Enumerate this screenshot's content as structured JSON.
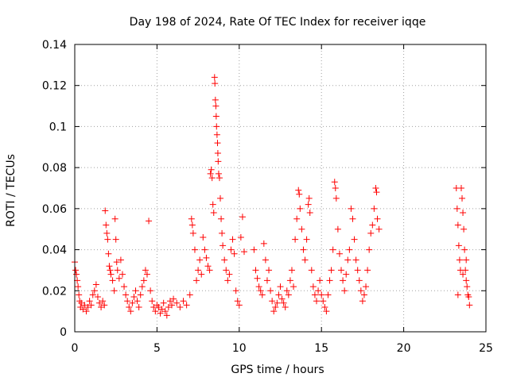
{
  "chart_data": {
    "type": "scatter",
    "title": "Day 198 of 2024, Rate Of TEC Index for receiver iqqe",
    "xlabel": "GPS time / hours",
    "ylabel": "ROTI / TECUs",
    "xlim": [
      0,
      25
    ],
    "ylim": [
      0,
      0.14
    ],
    "xticks": [
      0,
      5,
      10,
      15,
      20,
      25
    ],
    "xtick_labels": [
      "0",
      "5",
      "10",
      "15",
      "20",
      "25"
    ],
    "yticks": [
      0,
      0.02,
      0.04,
      0.06,
      0.08,
      0.1,
      0.12,
      0.14
    ],
    "ytick_labels": [
      "0",
      "0.02",
      "0.04",
      "0.06",
      "0.08",
      "0.1",
      "0.12",
      "0.14"
    ],
    "grid": true,
    "marker": "+",
    "marker_color": "#ff0000",
    "series": [
      {
        "name": "ROTI",
        "points": [
          [
            0.0,
            0.034
          ],
          [
            0.05,
            0.03
          ],
          [
            0.1,
            0.028
          ],
          [
            0.15,
            0.025
          ],
          [
            0.2,
            0.022
          ],
          [
            0.25,
            0.018
          ],
          [
            0.3,
            0.015
          ],
          [
            0.35,
            0.012
          ],
          [
            0.4,
            0.014
          ],
          [
            0.5,
            0.011
          ],
          [
            0.6,
            0.013
          ],
          [
            0.7,
            0.01
          ],
          [
            0.8,
            0.012
          ],
          [
            0.9,
            0.015
          ],
          [
            1.0,
            0.013
          ],
          [
            1.1,
            0.018
          ],
          [
            1.2,
            0.02
          ],
          [
            1.3,
            0.023
          ],
          [
            1.4,
            0.017
          ],
          [
            1.5,
            0.014
          ],
          [
            1.6,
            0.012
          ],
          [
            1.7,
            0.015
          ],
          [
            1.8,
            0.013
          ],
          [
            1.85,
            0.059
          ],
          [
            1.9,
            0.052
          ],
          [
            1.95,
            0.048
          ],
          [
            2.0,
            0.045
          ],
          [
            2.05,
            0.038
          ],
          [
            2.1,
            0.032
          ],
          [
            2.15,
            0.03
          ],
          [
            2.2,
            0.028
          ],
          [
            2.3,
            0.025
          ],
          [
            2.4,
            0.02
          ],
          [
            2.45,
            0.055
          ],
          [
            2.5,
            0.045
          ],
          [
            2.55,
            0.034
          ],
          [
            2.6,
            0.03
          ],
          [
            2.7,
            0.026
          ],
          [
            2.8,
            0.035
          ],
          [
            2.9,
            0.028
          ],
          [
            3.0,
            0.022
          ],
          [
            3.1,
            0.018
          ],
          [
            3.2,
            0.015
          ],
          [
            3.3,
            0.012
          ],
          [
            3.4,
            0.01
          ],
          [
            3.5,
            0.014
          ],
          [
            3.6,
            0.017
          ],
          [
            3.7,
            0.02
          ],
          [
            3.8,
            0.015
          ],
          [
            3.9,
            0.012
          ],
          [
            4.0,
            0.018
          ],
          [
            4.1,
            0.022
          ],
          [
            4.2,
            0.025
          ],
          [
            4.3,
            0.03
          ],
          [
            4.4,
            0.028
          ],
          [
            4.5,
            0.054
          ],
          [
            4.6,
            0.02
          ],
          [
            4.7,
            0.015
          ],
          [
            4.8,
            0.012
          ],
          [
            4.9,
            0.01
          ],
          [
            5.0,
            0.013
          ],
          [
            5.1,
            0.012
          ],
          [
            5.2,
            0.009
          ],
          [
            5.3,
            0.011
          ],
          [
            5.4,
            0.014
          ],
          [
            5.5,
            0.01
          ],
          [
            5.6,
            0.008
          ],
          [
            5.7,
            0.012
          ],
          [
            5.8,
            0.015
          ],
          [
            5.9,
            0.013
          ],
          [
            6.0,
            0.016
          ],
          [
            6.2,
            0.014
          ],
          [
            6.4,
            0.012
          ],
          [
            6.6,
            0.015
          ],
          [
            6.8,
            0.013
          ],
          [
            7.0,
            0.018
          ],
          [
            7.1,
            0.055
          ],
          [
            7.15,
            0.052
          ],
          [
            7.2,
            0.048
          ],
          [
            7.3,
            0.04
          ],
          [
            7.4,
            0.025
          ],
          [
            7.5,
            0.03
          ],
          [
            7.6,
            0.035
          ],
          [
            7.7,
            0.028
          ],
          [
            7.8,
            0.046
          ],
          [
            7.9,
            0.04
          ],
          [
            8.0,
            0.036
          ],
          [
            8.1,
            0.032
          ],
          [
            8.2,
            0.03
          ],
          [
            8.25,
            0.077
          ],
          [
            8.3,
            0.079
          ],
          [
            8.35,
            0.075
          ],
          [
            8.4,
            0.062
          ],
          [
            8.45,
            0.058
          ],
          [
            8.5,
            0.124
          ],
          [
            8.52,
            0.121
          ],
          [
            8.55,
            0.113
          ],
          [
            8.58,
            0.11
          ],
          [
            8.6,
            0.105
          ],
          [
            8.62,
            0.1
          ],
          [
            8.65,
            0.096
          ],
          [
            8.68,
            0.092
          ],
          [
            8.7,
            0.087
          ],
          [
            8.72,
            0.083
          ],
          [
            8.75,
            0.077
          ],
          [
            8.8,
            0.075
          ],
          [
            8.85,
            0.065
          ],
          [
            8.9,
            0.055
          ],
          [
            8.95,
            0.048
          ],
          [
            9.0,
            0.042
          ],
          [
            9.1,
            0.035
          ],
          [
            9.2,
            0.03
          ],
          [
            9.3,
            0.025
          ],
          [
            9.4,
            0.028
          ],
          [
            9.5,
            0.04
          ],
          [
            9.6,
            0.045
          ],
          [
            9.7,
            0.038
          ],
          [
            9.8,
            0.02
          ],
          [
            9.9,
            0.015
          ],
          [
            10.0,
            0.013
          ],
          [
            10.1,
            0.046
          ],
          [
            10.2,
            0.056
          ],
          [
            10.3,
            0.039
          ],
          [
            10.9,
            0.04
          ],
          [
            11.0,
            0.03
          ],
          [
            11.1,
            0.026
          ],
          [
            11.2,
            0.022
          ],
          [
            11.3,
            0.02
          ],
          [
            11.4,
            0.018
          ],
          [
            11.5,
            0.043
          ],
          [
            11.6,
            0.035
          ],
          [
            11.7,
            0.025
          ],
          [
            11.8,
            0.03
          ],
          [
            11.9,
            0.02
          ],
          [
            12.0,
            0.015
          ],
          [
            12.1,
            0.01
          ],
          [
            12.2,
            0.012
          ],
          [
            12.3,
            0.014
          ],
          [
            12.4,
            0.018
          ],
          [
            12.5,
            0.022
          ],
          [
            12.6,
            0.016
          ],
          [
            12.7,
            0.014
          ],
          [
            12.8,
            0.012
          ],
          [
            12.9,
            0.02
          ],
          [
            13.0,
            0.018
          ],
          [
            13.1,
            0.025
          ],
          [
            13.2,
            0.03
          ],
          [
            13.3,
            0.022
          ],
          [
            13.4,
            0.045
          ],
          [
            13.5,
            0.055
          ],
          [
            13.6,
            0.069
          ],
          [
            13.65,
            0.067
          ],
          [
            13.7,
            0.06
          ],
          [
            13.8,
            0.05
          ],
          [
            13.9,
            0.04
          ],
          [
            14.0,
            0.035
          ],
          [
            14.1,
            0.045
          ],
          [
            14.2,
            0.062
          ],
          [
            14.25,
            0.065
          ],
          [
            14.3,
            0.058
          ],
          [
            14.4,
            0.03
          ],
          [
            14.5,
            0.022
          ],
          [
            14.6,
            0.018
          ],
          [
            14.7,
            0.015
          ],
          [
            14.8,
            0.02
          ],
          [
            14.9,
            0.025
          ],
          [
            15.0,
            0.018
          ],
          [
            15.1,
            0.015
          ],
          [
            15.2,
            0.012
          ],
          [
            15.3,
            0.01
          ],
          [
            15.4,
            0.018
          ],
          [
            15.5,
            0.025
          ],
          [
            15.6,
            0.03
          ],
          [
            15.7,
            0.04
          ],
          [
            15.8,
            0.073
          ],
          [
            15.85,
            0.07
          ],
          [
            15.9,
            0.065
          ],
          [
            16.0,
            0.05
          ],
          [
            16.1,
            0.038
          ],
          [
            16.2,
            0.03
          ],
          [
            16.3,
            0.025
          ],
          [
            16.4,
            0.02
          ],
          [
            16.5,
            0.028
          ],
          [
            16.6,
            0.035
          ],
          [
            16.7,
            0.04
          ],
          [
            16.8,
            0.06
          ],
          [
            16.9,
            0.055
          ],
          [
            17.0,
            0.045
          ],
          [
            17.1,
            0.035
          ],
          [
            17.2,
            0.03
          ],
          [
            17.3,
            0.025
          ],
          [
            17.4,
            0.02
          ],
          [
            17.5,
            0.015
          ],
          [
            17.6,
            0.018
          ],
          [
            17.7,
            0.022
          ],
          [
            17.8,
            0.03
          ],
          [
            17.9,
            0.04
          ],
          [
            18.0,
            0.048
          ],
          [
            18.1,
            0.052
          ],
          [
            18.2,
            0.06
          ],
          [
            18.3,
            0.07
          ],
          [
            18.35,
            0.068
          ],
          [
            18.4,
            0.055
          ],
          [
            18.5,
            0.05
          ],
          [
            23.2,
            0.07
          ],
          [
            23.25,
            0.06
          ],
          [
            23.3,
            0.052
          ],
          [
            23.35,
            0.042
          ],
          [
            23.4,
            0.035
          ],
          [
            23.45,
            0.03
          ],
          [
            23.5,
            0.07
          ],
          [
            23.55,
            0.065
          ],
          [
            23.6,
            0.058
          ],
          [
            23.65,
            0.05
          ],
          [
            23.7,
            0.04
          ],
          [
            23.75,
            0.03
          ],
          [
            23.8,
            0.025
          ],
          [
            23.85,
            0.022
          ],
          [
            23.9,
            0.018
          ],
          [
            23.95,
            0.017
          ],
          [
            24.0,
            0.013
          ],
          [
            23.3,
            0.018
          ],
          [
            23.6,
            0.028
          ],
          [
            23.8,
            0.035
          ]
        ]
      }
    ]
  }
}
